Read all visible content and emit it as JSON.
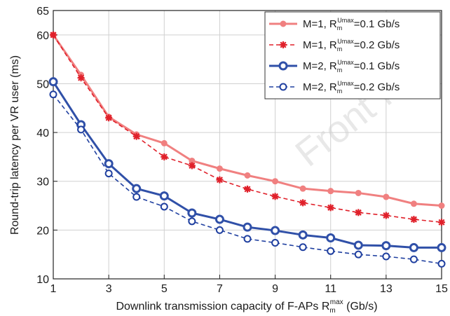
{
  "chart_data": {
    "type": "line",
    "xlabel": "Downlink transmission capacity of F-APs R",
    "xlabel_sub": "m",
    "xlabel_sup": "max",
    "xlabel_unit": " (Gb/s)",
    "ylabel": "Round-trip latency per VR user (ms)",
    "xlim": [
      1,
      15
    ],
    "ylim": [
      10,
      65
    ],
    "x_ticks": [
      1,
      3,
      5,
      7,
      9,
      11,
      13,
      15
    ],
    "y_ticks": [
      10,
      20,
      30,
      40,
      50,
      60,
      65
    ],
    "grid": true,
    "legend_position": "top-right",
    "watermark": "Front In",
    "x": [
      1,
      2,
      3,
      4,
      5,
      6,
      7,
      8,
      9,
      10,
      11,
      12,
      13,
      14,
      15
    ],
    "series": [
      {
        "name": "M=1, R_m^Umax=0.1 Gb/s",
        "label_main": "M=1, R",
        "label_sub": "m",
        "label_sup": "Umax",
        "label_tail": "=0.1 Gb/s",
        "color": "#f08080",
        "dashed": false,
        "marker": "dot",
        "values": [
          60,
          51.8,
          43.2,
          39.6,
          37.8,
          34.2,
          32.6,
          31.2,
          30,
          28.5,
          28,
          27.6,
          26.8,
          25.4,
          25
        ]
      },
      {
        "name": "M=1, R_m^Umax=0.2 Gb/s",
        "label_main": "M=1, R",
        "label_sub": "m",
        "label_sup": "Umax",
        "label_tail": "=0.2 Gb/s",
        "color": "#e0202a",
        "dashed": true,
        "marker": "star",
        "values": [
          60,
          51.2,
          43,
          39.2,
          35,
          33.2,
          30.3,
          28.4,
          26.9,
          25.6,
          24.6,
          23.6,
          23,
          22.2,
          21.6
        ]
      },
      {
        "name": "M=2, R_m^Umax=0.1 Gb/s",
        "label_main": "M=2, R",
        "label_sub": "m",
        "label_sup": "Umax",
        "label_tail": "=0.1 Gb/s",
        "color": "#3050a8",
        "dashed": false,
        "marker": "circle",
        "values": [
          50.4,
          41.6,
          33.6,
          28.5,
          27,
          23.5,
          22.2,
          20.6,
          19.9,
          19,
          18.4,
          16.9,
          16.8,
          16.4,
          16.4
        ]
      },
      {
        "name": "M=2, R_m^Umax=0.2 Gb/s",
        "label_main": "M=2, R",
        "label_sub": "m",
        "label_sup": "Umax",
        "label_tail": "=0.2 Gb/s",
        "color": "#2040a0",
        "dashed": true,
        "marker": "open-circle",
        "values": [
          47.8,
          40.6,
          31.6,
          26.8,
          24.8,
          21.8,
          20,
          18.2,
          17.4,
          16.5,
          15.7,
          15,
          14.6,
          14,
          13.1
        ]
      }
    ]
  }
}
